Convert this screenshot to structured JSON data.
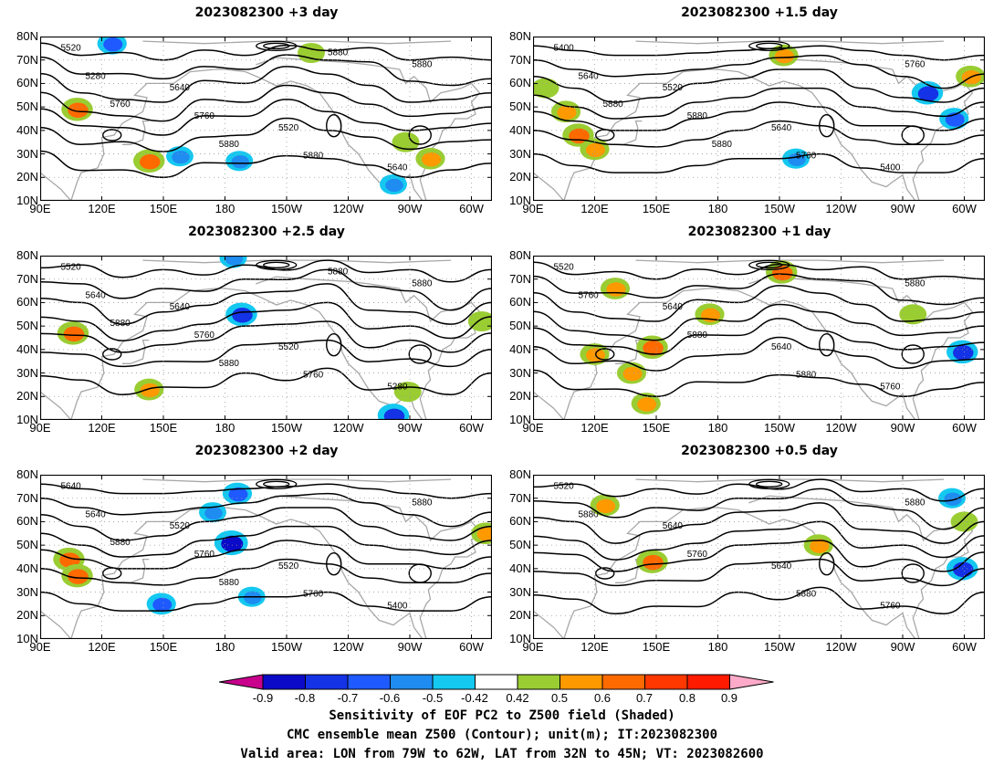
{
  "lat_labels": [
    "80N",
    "70N",
    "60N",
    "50N",
    "40N",
    "30N",
    "20N",
    "10N"
  ],
  "lon_labels": [
    "90E",
    "120E",
    "150E",
    "180",
    "150W",
    "120W",
    "90W",
    "60W"
  ],
  "colors": {
    "continents": "#a8a8a8",
    "contour": "#000000",
    "grid": "#9a9a9a"
  },
  "panels": [
    {
      "title": "2023082300 +3 day",
      "contour_labels": [
        "5520",
        "5640",
        "5520",
        "5640",
        "5280",
        "5760",
        "5880",
        "5880",
        "5760",
        "5880",
        "5880"
      ],
      "shading": [
        {
          "lon": 108,
          "lat": 49,
          "value": 0.7
        },
        {
          "lon": 125,
          "lat": 77,
          "value": -0.6
        },
        {
          "lon": 143,
          "lat": 27,
          "value": 0.7
        },
        {
          "lon": 158,
          "lat": 29,
          "value": -0.5
        },
        {
          "lon": 187,
          "lat": 27,
          "value": -0.5
        },
        {
          "lon": 222,
          "lat": 73,
          "value": 0.5
        },
        {
          "lon": 280,
          "lat": 28,
          "value": 0.6
        },
        {
          "lon": 268,
          "lat": 35,
          "value": 0.5
        },
        {
          "lon": 262,
          "lat": 17,
          "value": -0.5
        }
      ]
    },
    {
      "title": "2023082300 +1.5 day",
      "contour_labels": [
        "5400",
        "5520",
        "5640",
        "5400",
        "5640",
        "5880",
        "5760",
        "5760",
        "5880",
        "5880"
      ],
      "shading": [
        {
          "lon": 112,
          "lat": 38,
          "value": 0.7
        },
        {
          "lon": 106,
          "lat": 48,
          "value": 0.6
        },
        {
          "lon": 120,
          "lat": 32,
          "value": 0.6
        },
        {
          "lon": 96,
          "lat": 58,
          "value": 0.5
        },
        {
          "lon": 282,
          "lat": 56,
          "value": -0.7
        },
        {
          "lon": 295,
          "lat": 45,
          "value": -0.6
        },
        {
          "lon": 218,
          "lat": 28,
          "value": -0.5
        },
        {
          "lon": 212,
          "lat": 72,
          "value": 0.6
        },
        {
          "lon": 303,
          "lat": 63,
          "value": 0.6
        }
      ]
    },
    {
      "title": "2023082300 +2.5 day",
      "contour_labels": [
        "5520",
        "5640",
        "5520",
        "5280",
        "5640",
        "5760",
        "5760",
        "5880",
        "5880",
        "5880",
        "5880"
      ],
      "shading": [
        {
          "lon": 106,
          "lat": 47,
          "value": 0.7
        },
        {
          "lon": 188,
          "lat": 55,
          "value": -0.7
        },
        {
          "lon": 143,
          "lat": 23,
          "value": 0.6
        },
        {
          "lon": 269,
          "lat": 22,
          "value": 0.5
        },
        {
          "lon": 305,
          "lat": 52,
          "value": 0.5
        },
        {
          "lon": 262,
          "lat": 12,
          "value": -0.7
        },
        {
          "lon": 184,
          "lat": 79,
          "value": -0.5
        }
      ]
    },
    {
      "title": "2023082300 +1 day",
      "contour_labels": [
        "5520",
        "5640",
        "5640",
        "5760",
        "5760",
        "5880",
        "5880",
        "5880"
      ],
      "shading": [
        {
          "lon": 148,
          "lat": 41,
          "value": 0.7
        },
        {
          "lon": 145,
          "lat": 17,
          "value": 0.6
        },
        {
          "lon": 138,
          "lat": 30,
          "value": 0.6
        },
        {
          "lon": 120,
          "lat": 38,
          "value": 0.6
        },
        {
          "lon": 211,
          "lat": 73,
          "value": 0.7
        },
        {
          "lon": 299,
          "lat": 39,
          "value": -0.7
        },
        {
          "lon": 275,
          "lat": 55,
          "value": 0.5
        },
        {
          "lon": 130,
          "lat": 66,
          "value": 0.6
        },
        {
          "lon": 176,
          "lat": 55,
          "value": 0.6
        }
      ]
    },
    {
      "title": "2023082300 +2 day",
      "contour_labels": [
        "5640",
        "5520",
        "5520",
        "5400",
        "5640",
        "5760",
        "5760",
        "5880",
        "5880",
        "5880"
      ],
      "shading": [
        {
          "lon": 104,
          "lat": 44,
          "value": 0.7
        },
        {
          "lon": 108,
          "lat": 37,
          "value": 0.7
        },
        {
          "lon": 183,
          "lat": 51,
          "value": -0.8
        },
        {
          "lon": 193,
          "lat": 28,
          "value": -0.5
        },
        {
          "lon": 186,
          "lat": 72,
          "value": -0.6
        },
        {
          "lon": 174,
          "lat": 64,
          "value": -0.5
        },
        {
          "lon": 149,
          "lat": 25,
          "value": -0.6
        },
        {
          "lon": 307,
          "lat": 55,
          "value": 0.6
        }
      ]
    },
    {
      "title": "2023082300 +0.5 day",
      "contour_labels": [
        "5520",
        "5640",
        "5640",
        "5760",
        "5880",
        "5760",
        "5880",
        "5880"
      ],
      "shading": [
        {
          "lon": 148,
          "lat": 43,
          "value": 0.7
        },
        {
          "lon": 125,
          "lat": 67,
          "value": 0.6
        },
        {
          "lon": 229,
          "lat": 50,
          "value": 0.6
        },
        {
          "lon": 299,
          "lat": 40,
          "value": -0.7
        },
        {
          "lon": 294,
          "lat": 70,
          "value": -0.5
        },
        {
          "lon": 300,
          "lat": 60,
          "value": 0.5
        }
      ]
    }
  ],
  "colorbar": {
    "ticks": [
      "-0.9",
      "-0.8",
      "-0.7",
      "-0.6",
      "-0.5",
      "-0.42",
      "0.42",
      "0.5",
      "0.6",
      "0.7",
      "0.8",
      "0.9"
    ],
    "colors": [
      "#c8008c",
      "#0a0ac8",
      "#1432e6",
      "#1e5aff",
      "#1e8cf0",
      "#14c8f0",
      "#ffffff",
      "#9acd32",
      "#ff9900",
      "#ff6a00",
      "#ff3800",
      "#ff1a00",
      "#ffaac8"
    ]
  },
  "captions": {
    "line1": "Sensitivity of EOF PC2 to Z500 field (Shaded)",
    "line2": "CMC ensemble mean Z500 (Contour); unit(m); IT:2023082300",
    "line3": "Valid area: LON from 79W to 62W, LAT from 32N to 45N; VT: 2023082600"
  }
}
